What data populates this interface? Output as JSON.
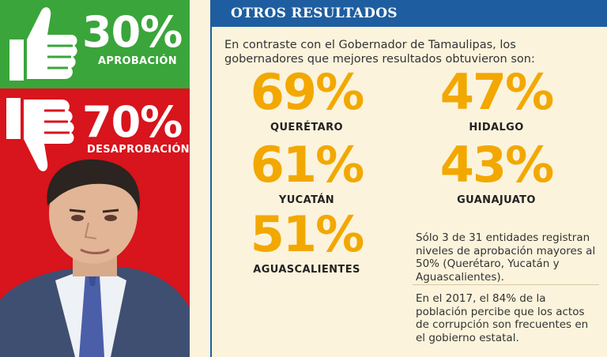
{
  "approval": {
    "percent": "30%",
    "label": "APROBACIÓN",
    "icon": "thumbs-up-icon",
    "color": "#3aa53a"
  },
  "disapproval": {
    "percent": "70%",
    "label": "DESAPROBACIÓN",
    "icon": "thumbs-down-icon",
    "color": "#d8141c"
  },
  "section": {
    "title": "OTROS RESULTADOS",
    "intro": "En contraste con el Gobernador de Tamaulipas, los gobernadores que mejores resultados obtuvieron son:",
    "accent_color": "#f2a800",
    "header_color": "#1e5ea0"
  },
  "governors": [
    {
      "value": "69%",
      "state": "QUERÉTARO"
    },
    {
      "value": "47%",
      "state": "HIDALGO"
    },
    {
      "value": "61%",
      "state": "YUCATÁN"
    },
    {
      "value": "43%",
      "state": "GUANAJUATO"
    },
    {
      "value": "51%",
      "state": "AGUASCALIENTES"
    }
  ],
  "notes": [
    "Sólo 3 de 31 entidades registran niveles de aprobación mayores al 50% (Querétaro, Yucatán y Aguascalientes).",
    "En el 2017, el 84% de la población percibe que los actos de corrupción son frecuentes en el gobierno estatal."
  ]
}
